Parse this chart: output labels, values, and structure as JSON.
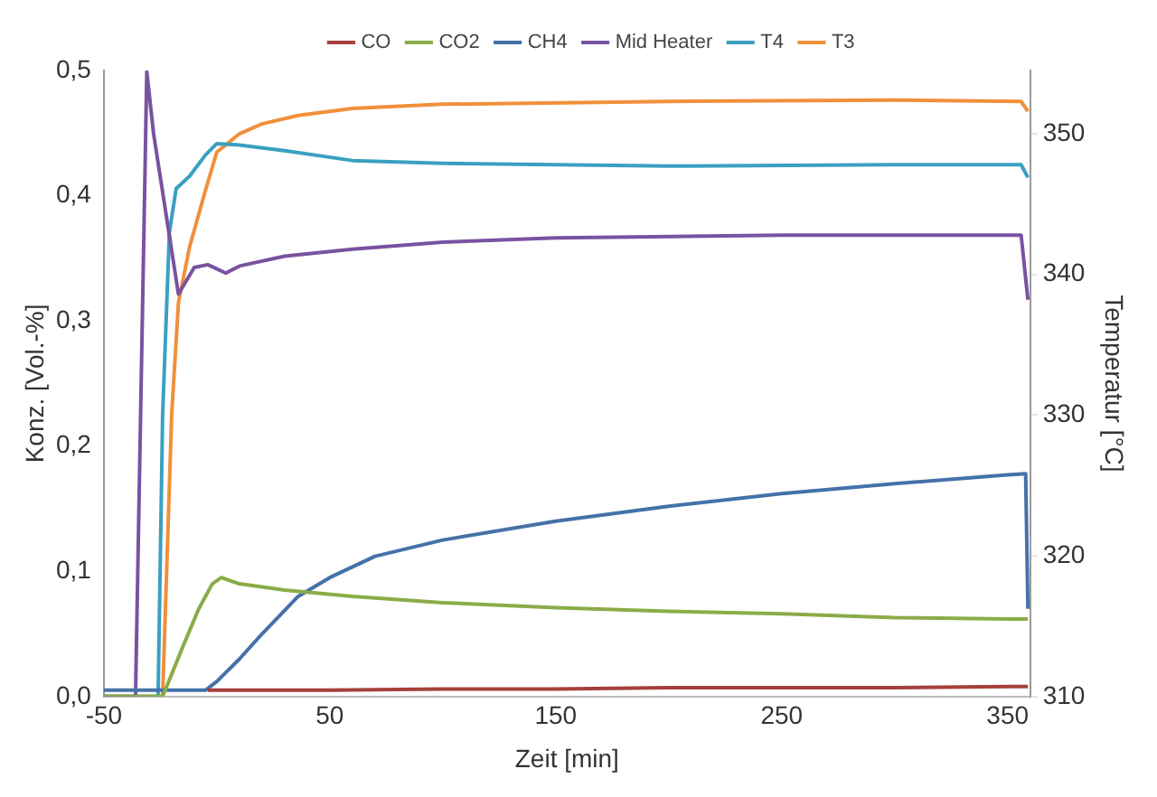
{
  "chart_data": {
    "type": "line",
    "xlabel": "Zeit [min]",
    "ylabel": "Konz. [Vol.-%]",
    "y2label": "Temperatur [°C]",
    "legend": "top",
    "grid": false,
    "marker": "none",
    "line_style": "solid",
    "xlim": [
      -50,
      360
    ],
    "xticks": [
      -50,
      50,
      150,
      250,
      350
    ],
    "ylim": [
      0,
      0.5
    ],
    "yticks": [
      {
        "value": 0,
        "label": "0,0"
      },
      {
        "value": 0.1,
        "label": "0,1"
      },
      {
        "value": 0.2,
        "label": "0,2"
      },
      {
        "value": 0.3,
        "label": "0,3"
      },
      {
        "value": 0.4,
        "label": "0,4"
      },
      {
        "value": 0.5,
        "label": "0,5"
      }
    ],
    "y2lim": [
      310,
      354.5
    ],
    "y2ticks": [
      310,
      320,
      330,
      340,
      350
    ],
    "series": [
      {
        "name": "CO",
        "color": "#a5403b",
        "x": [
          -4,
          50,
          100,
          150,
          200,
          250,
          300,
          350,
          359
        ],
        "values": [
          0.005,
          0.005,
          0.006,
          0.006,
          0.007,
          0.007,
          0.007,
          0.008,
          0.008
        ]
      },
      {
        "name": "CO2",
        "color": "#8aac48",
        "x": [
          -50,
          -24,
          -15,
          -8,
          -2,
          2,
          10,
          30,
          60,
          100,
          150,
          200,
          250,
          300,
          350,
          359
        ],
        "values": [
          0,
          0,
          0.04,
          0.07,
          0.09,
          0.095,
          0.09,
          0.085,
          0.08,
          0.075,
          0.071,
          0.068,
          0.066,
          0.063,
          0.062,
          0.062
        ]
      },
      {
        "name": "CH4",
        "color": "#4472a8",
        "x": [
          -50,
          -5,
          0,
          10,
          20,
          36,
          50,
          70,
          100,
          150,
          200,
          250,
          300,
          350,
          358,
          359
        ],
        "values": [
          0.005,
          0.005,
          0.012,
          0.03,
          0.05,
          0.08,
          0.095,
          0.112,
          0.125,
          0.14,
          0.152,
          0.162,
          0.17,
          0.177,
          0.178,
          0.07
        ]
      },
      {
        "name": "Mid Heater",
        "color": "#7853a0",
        "axis": "y2",
        "x": [
          -50,
          -36,
          -31,
          -28,
          -17,
          -10,
          -4,
          4,
          10,
          30,
          60,
          100,
          150,
          250,
          350,
          356,
          359
        ],
        "values": [
          310,
          310,
          354.4,
          350,
          338.6,
          340.5,
          340.7,
          340.1,
          340.6,
          341.3,
          341.8,
          342.3,
          342.6,
          342.8,
          342.8,
          342.8,
          338.2
        ]
      },
      {
        "name": "T4",
        "color": "#3aa0c0",
        "axis": "y2",
        "x": [
          -50,
          -26,
          -24,
          -21,
          -18,
          -12,
          -5,
          0,
          10,
          30,
          60,
          100,
          200,
          300,
          356,
          359
        ],
        "values": [
          310,
          310,
          330,
          343,
          346.1,
          347,
          348.5,
          349.3,
          349.2,
          348.8,
          348.1,
          347.9,
          347.7,
          347.8,
          347.8,
          346.9
        ]
      },
      {
        "name": "T3",
        "color": "#f0903a",
        "axis": "y2",
        "x": [
          -50,
          -24,
          -22,
          -20,
          -17,
          -12,
          -5,
          0,
          10,
          20,
          36,
          60,
          100,
          200,
          300,
          356,
          359
        ],
        "values": [
          310,
          310,
          320,
          330,
          338,
          342,
          346,
          348.7,
          350,
          350.7,
          351.3,
          351.8,
          352.1,
          352.3,
          352.4,
          352.3,
          351.6
        ]
      }
    ]
  }
}
